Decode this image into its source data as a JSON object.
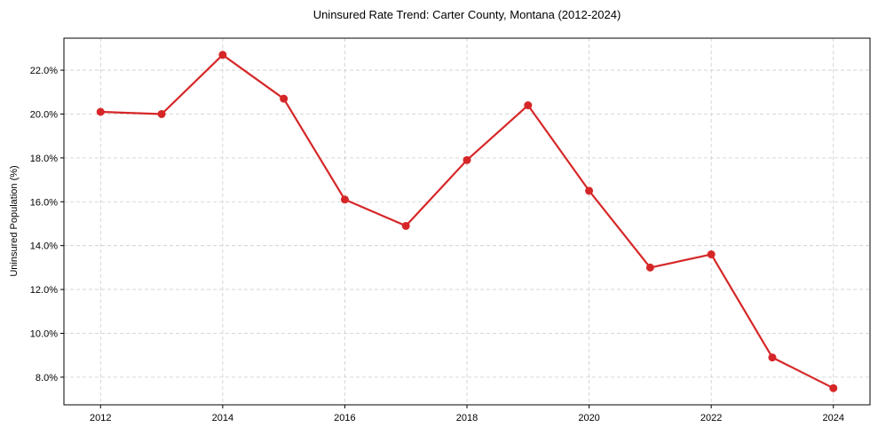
{
  "chart_data": {
    "type": "line",
    "title": "Uninsured Rate Trend: Carter County, Montana (2012-2024)",
    "xlabel": "",
    "ylabel": "Uninsured Population (%)",
    "x": [
      2012,
      2013,
      2014,
      2015,
      2016,
      2017,
      2018,
      2019,
      2020,
      2021,
      2022,
      2023,
      2024
    ],
    "series": [
      {
        "name": "Uninsured Rate",
        "values": [
          20.1,
          20.0,
          22.7,
          20.7,
          16.1,
          14.9,
          17.9,
          20.4,
          16.5,
          13.0,
          13.6,
          8.9,
          7.5
        ],
        "color": "#d62728",
        "marker": "circle"
      }
    ],
    "xticks": [
      2012,
      2014,
      2016,
      2018,
      2020,
      2022,
      2024
    ],
    "xtick_labels": [
      "2012",
      "2014",
      "2016",
      "2018",
      "2020",
      "2022",
      "2024"
    ],
    "yticks": [
      8,
      10,
      12,
      14,
      16,
      18,
      20,
      22
    ],
    "ytick_labels": [
      "8.0%",
      "10.0%",
      "12.0%",
      "14.0%",
      "16.0%",
      "18.0%",
      "20.0%",
      "22.0%"
    ],
    "xlim": [
      2011.4,
      2024.6
    ],
    "ylim": [
      6.74,
      23.46
    ],
    "grid": true,
    "legend": null
  },
  "colors": {
    "line": "#d62728",
    "grid": "#cccccc",
    "frame": "#000000",
    "background": "#ffffff"
  }
}
